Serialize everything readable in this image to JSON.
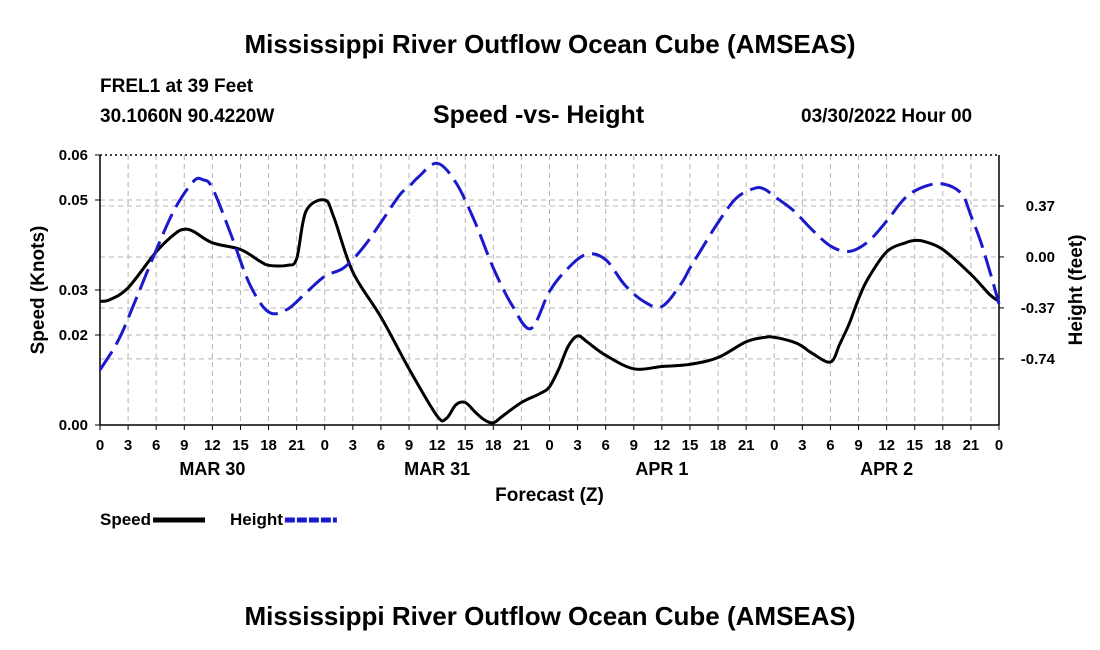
{
  "page": {
    "title": "Mississippi River Outflow Ocean Cube (AMSEAS)",
    "station": "FREL1 at 39 Feet",
    "location": "30.1060N  90.4220W",
    "plot_title": "Speed -vs- Height",
    "date": "03/30/2022 Hour 00",
    "bottom_title": "Mississippi River Outflow Ocean Cube (AMSEAS)"
  },
  "chart_data": {
    "type": "line",
    "title": "Speed -vs- Height",
    "xlabel": "Forecast (Z)",
    "ylabel": "Speed (Knots)",
    "y2label": "Height (feet)",
    "xlim": [
      0,
      96
    ],
    "ylim": [
      0,
      0.06
    ],
    "y2lim": [
      -1.22,
      0.74
    ],
    "x_ticks": [
      0,
      3,
      6,
      9,
      12,
      15,
      18,
      21,
      24,
      27,
      30,
      33,
      36,
      39,
      42,
      45,
      48,
      51,
      54,
      57,
      60,
      63,
      66,
      69,
      72,
      75,
      78,
      81,
      84,
      87,
      90,
      93,
      96
    ],
    "x_tick_labels": [
      "0",
      "3",
      "6",
      "9",
      "12",
      "15",
      "18",
      "21",
      "0",
      "3",
      "6",
      "9",
      "12",
      "15",
      "18",
      "21",
      "0",
      "3",
      "6",
      "9",
      "12",
      "15",
      "18",
      "21",
      "0",
      "3",
      "6",
      "9",
      "12",
      "15",
      "18",
      "21",
      "0"
    ],
    "y_ticks": [
      0,
      0.02,
      0.03,
      0.05,
      0.06
    ],
    "y_tick_labels": [
      "0.00",
      "0.02",
      "0.03",
      "0.05",
      "0.06"
    ],
    "y2_ticks": [
      0.37,
      0.0,
      -0.37,
      -0.74
    ],
    "y2_tick_labels": [
      "0.37",
      "0.00",
      "-0.37",
      "-0.74"
    ],
    "day_labels": [
      {
        "x": 12,
        "label": "MAR 30"
      },
      {
        "x": 36,
        "label": "MAR 31"
      },
      {
        "x": 60,
        "label": "APR 1"
      },
      {
        "x": 84,
        "label": "APR 2"
      }
    ],
    "series": [
      {
        "name": "Speed",
        "axis": "left",
        "color": "#000000",
        "dash": "solid",
        "x": [
          0,
          1,
          3,
          6,
          8,
          9,
          10,
          12,
          15,
          17,
          18,
          20,
          21,
          22,
          24,
          25,
          27,
          30,
          33,
          36,
          37,
          38,
          39,
          40,
          41,
          42,
          43,
          45,
          47,
          48,
          49,
          50,
          51,
          52,
          54,
          57,
          60,
          63,
          66,
          69,
          71,
          72,
          74,
          75,
          76,
          78,
          79,
          80,
          81,
          82,
          84,
          86,
          87,
          88,
          90,
          93,
          95,
          96
        ],
        "y": [
          0.0275,
          0.0278,
          0.0305,
          0.0385,
          0.0425,
          0.0435,
          0.043,
          0.0405,
          0.039,
          0.0365,
          0.0355,
          0.0355,
          0.037,
          0.0475,
          0.05,
          0.046,
          0.034,
          0.024,
          0.0125,
          0.002,
          0.0015,
          0.0045,
          0.005,
          0.003,
          0.0012,
          0.0005,
          0.002,
          0.005,
          0.007,
          0.0085,
          0.0125,
          0.0175,
          0.0198,
          0.0185,
          0.0155,
          0.0125,
          0.013,
          0.0135,
          0.015,
          0.0185,
          0.0195,
          0.0195,
          0.0185,
          0.0175,
          0.016,
          0.014,
          0.018,
          0.0225,
          0.028,
          0.0325,
          0.0385,
          0.0405,
          0.041,
          0.0408,
          0.039,
          0.0335,
          0.029,
          0.0275
        ]
      },
      {
        "name": "Height",
        "axis": "right",
        "color": "#1a1acc",
        "dash": "dashed",
        "x": [
          0,
          2,
          4,
          6,
          8,
          10,
          11,
          12,
          14,
          16,
          18,
          20,
          22,
          24,
          26,
          28,
          30,
          32,
          33,
          34,
          36,
          38,
          40,
          42,
          44,
          46,
          48,
          50,
          52,
          54,
          56,
          58,
          60,
          62,
          63,
          64,
          66,
          68,
          70,
          71,
          72,
          74,
          76,
          78,
          80,
          82,
          84,
          86,
          88,
          90,
          92,
          93,
          94,
          95,
          96
        ],
        "y": [
          -0.82,
          -0.6,
          -0.28,
          0.05,
          0.35,
          0.55,
          0.56,
          0.5,
          0.16,
          -0.2,
          -0.4,
          -0.38,
          -0.26,
          -0.14,
          -0.08,
          0.06,
          0.25,
          0.45,
          0.51,
          0.58,
          0.68,
          0.54,
          0.26,
          -0.08,
          -0.35,
          -0.52,
          -0.25,
          -0.08,
          0.02,
          -0.02,
          -0.2,
          -0.32,
          -0.36,
          -0.2,
          -0.08,
          0.03,
          0.25,
          0.43,
          0.5,
          0.49,
          0.44,
          0.34,
          0.2,
          0.08,
          0.04,
          0.11,
          0.26,
          0.43,
          0.51,
          0.53,
          0.46,
          0.3,
          0.12,
          -0.1,
          -0.34
        ]
      }
    ],
    "legend": [
      {
        "label": "Speed",
        "color": "#000000",
        "dash": "solid"
      },
      {
        "label": "Height",
        "color": "#1a1acc",
        "dash": "dashed"
      }
    ],
    "grid": true,
    "legend_position": "bottom-left"
  }
}
